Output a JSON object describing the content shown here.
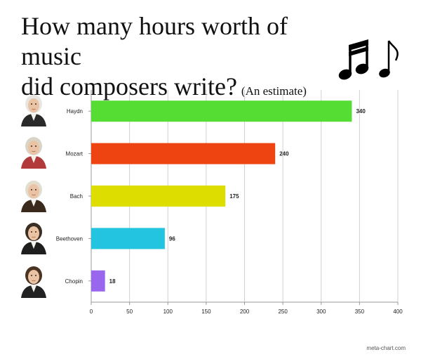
{
  "title": {
    "line1": "How many hours worth of music",
    "line2": "did composers write?",
    "subtitle": "(An estimate)"
  },
  "credit": "meta-chart.com",
  "chart_data": {
    "type": "bar",
    "orientation": "horizontal",
    "categories": [
      "Haydn",
      "Mozart",
      "Bach",
      "Beethoven",
      "Chopin"
    ],
    "values": [
      340,
      240,
      175,
      96,
      18
    ],
    "colors": [
      "#55dd33",
      "#ee4411",
      "#dddd00",
      "#22c4e0",
      "#9966ee"
    ],
    "xlim": [
      0,
      400
    ],
    "xticks": [
      0,
      50,
      100,
      150,
      200,
      250,
      300,
      350,
      400
    ],
    "grid": true,
    "legend": "none"
  }
}
